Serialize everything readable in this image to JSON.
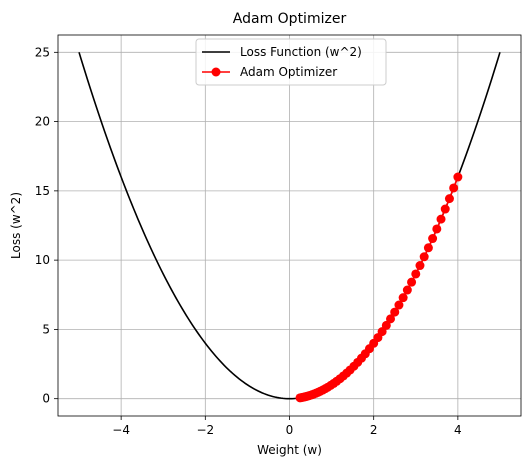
{
  "chart_data": {
    "type": "line",
    "title": "Adam Optimizer",
    "xlabel": "Weight (w)",
    "ylabel": "Loss (w^2)",
    "xlim": [
      -5.5,
      5.5
    ],
    "ylim": [
      -1.25,
      26.25
    ],
    "xticks": [
      -4,
      -2,
      0,
      2,
      4
    ],
    "yticks": [
      0,
      5,
      10,
      15,
      20,
      25
    ],
    "xtick_labels": [
      "−4",
      "−2",
      "0",
      "2",
      "4"
    ],
    "ytick_labels": [
      "0",
      "5",
      "10",
      "15",
      "20",
      "25"
    ],
    "grid": true,
    "legend_position": "top-center",
    "series": [
      {
        "name": "Loss Function (w^2)",
        "color": "#000000",
        "marker": "none",
        "function": "w^2",
        "x_range": [
          -5,
          5
        ]
      },
      {
        "name": "Adam Optimizer",
        "color": "#ff0000",
        "marker": "circle",
        "x": [
          4.0,
          3.9,
          3.8,
          3.7,
          3.6,
          3.5,
          3.4,
          3.3,
          3.2,
          3.1,
          3.0,
          2.9,
          2.8,
          2.7,
          2.6,
          2.5,
          2.4,
          2.3,
          2.2,
          2.1,
          2.0,
          1.9,
          1.8,
          1.71,
          1.62,
          1.53,
          1.44,
          1.36,
          1.28,
          1.2,
          1.12,
          1.05,
          0.98,
          0.91,
          0.85,
          0.79,
          0.73,
          0.68,
          0.63,
          0.58,
          0.54,
          0.5,
          0.46,
          0.43,
          0.4,
          0.37,
          0.34,
          0.31,
          0.28,
          0.25
        ]
      }
    ]
  }
}
